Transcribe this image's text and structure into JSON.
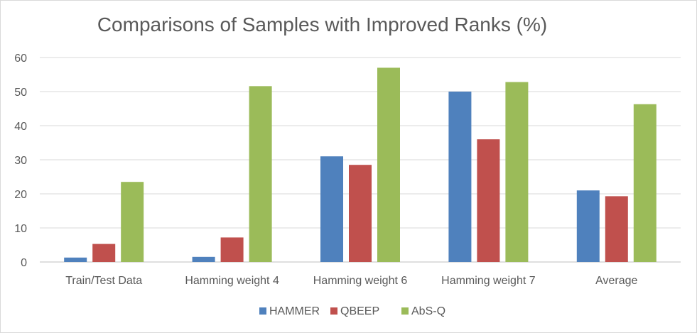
{
  "chart_data": {
    "type": "bar",
    "title": "Comparisons of Samples with Improved Ranks (%)",
    "categories": [
      "Train/Test Data",
      "Hamming weight 4",
      "Hamming weight 6",
      "Hamming weight 7",
      "Average"
    ],
    "series": [
      {
        "name": "HAMMER",
        "color": "#4f81bd",
        "values": [
          1.3,
          1.5,
          31,
          50,
          21
        ]
      },
      {
        "name": "QBEEP",
        "color": "#c0504d",
        "values": [
          5.3,
          7.2,
          28.5,
          36,
          19.3
        ]
      },
      {
        "name": "AbS-Q",
        "color": "#9bbb59",
        "values": [
          23.5,
          51.6,
          57,
          52.8,
          46.3
        ]
      }
    ],
    "ylim": [
      0,
      60
    ],
    "yticks": [
      0,
      10,
      20,
      30,
      40,
      50,
      60
    ],
    "grid": true,
    "legend": "bottom"
  }
}
